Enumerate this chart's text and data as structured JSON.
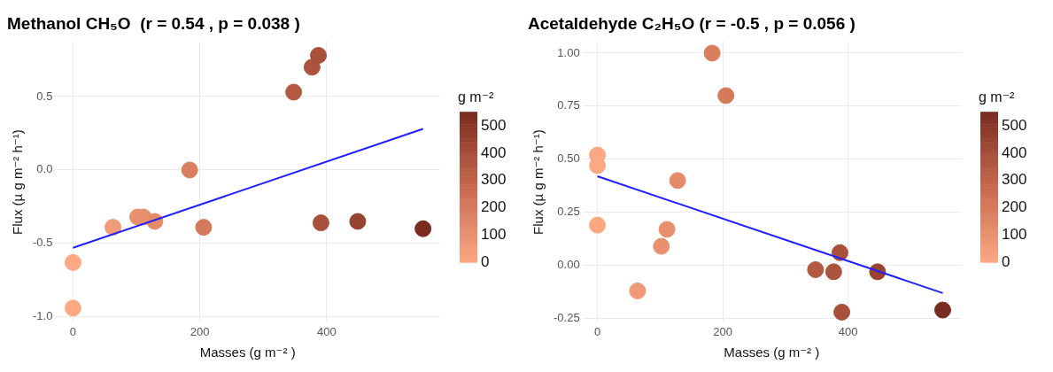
{
  "chart_data": [
    {
      "type": "scatter",
      "title": "Methanol CH₅O  (r = 0.54 , p = 0.038 )",
      "xlabel": "Masses (g m⁻² )",
      "ylabel": "Flux (µ g m⁻² h⁻¹)",
      "clabel": "g m⁻²",
      "clim": [
        0,
        552
      ],
      "cticks": [
        0,
        100,
        200,
        300,
        400,
        500
      ],
      "xlim": [
        -28,
        579
      ],
      "ylim": [
        -1.04,
        0.875
      ],
      "xticks": [
        0,
        200,
        400
      ],
      "yticks": [
        {
          "value": -1,
          "label": "-1.0"
        },
        -0.5,
        {
          "value": 0,
          "label": "0.0"
        },
        0.5
      ],
      "grid": true,
      "series": [
        {
          "type": "scatter",
          "marker": "circle",
          "x": [
            0,
            0,
            63,
            102,
            111,
            129,
            184,
            206,
            348,
            377,
            387,
            391,
            449,
            552
          ],
          "values": [
            -0.63,
            -0.94,
            -0.39,
            -0.32,
            -0.32,
            -0.35,
            0.0,
            -0.39,
            0.53,
            0.7,
            0.78,
            -0.36,
            -0.35,
            -0.4
          ],
          "cvalues": [
            0,
            0,
            63,
            102,
            111,
            129,
            184,
            206,
            348,
            377,
            387,
            391,
            449,
            552
          ],
          "colors": [
            "#fca882",
            "#fca882",
            "#f09a76",
            "#e99170",
            "#e78f6d",
            "#e48b6a",
            "#d97e5f",
            "#d5795b",
            "#b45942",
            "#ac533d",
            "#a9503c",
            "#a8503b",
            "#974331",
            "#7a2c20"
          ]
        },
        {
          "type": "line",
          "color": "#1f1fff",
          "x": [
            0,
            552
          ],
          "values": [
            -0.53,
            0.28
          ]
        }
      ]
    },
    {
      "type": "scatter",
      "title": "Acetaldehyde C₂H₅O (r = -0.5 , p = 0.056 )",
      "xlabel": "Masses (g m⁻² )",
      "ylabel": "Flux (µ g m⁻² h⁻¹)",
      "clabel": "g m⁻²",
      "clim": [
        0,
        552
      ],
      "cticks": [
        0,
        100,
        200,
        300,
        400,
        500
      ],
      "xlim": [
        -24,
        580
      ],
      "ylim": [
        -0.27,
        1.055
      ],
      "xticks": [
        0,
        200,
        400
      ],
      "yticks": [
        {
          "value": -0.25,
          "label": "-0.25"
        },
        {
          "value": 0,
          "label": "0.00"
        },
        {
          "value": 0.25,
          "label": "0.25"
        },
        {
          "value": 0.5,
          "label": "0.50"
        },
        {
          "value": 0.75,
          "label": "0.75"
        },
        {
          "value": 1,
          "label": "1.00"
        }
      ],
      "grid": true,
      "series": [
        {
          "type": "scatter",
          "marker": "circle",
          "x": [
            0,
            0,
            0,
            64,
            102,
            111,
            128,
            183,
            205,
            348,
            377,
            387,
            390,
            447,
            551
          ],
          "values": [
            0.52,
            0.47,
            0.19,
            -0.12,
            0.09,
            0.17,
            0.4,
            1.0,
            0.8,
            -0.02,
            -0.03,
            0.06,
            -0.22,
            -0.03,
            -0.21
          ],
          "cvalues": [
            0,
            0,
            0,
            64,
            102,
            111,
            128,
            183,
            205,
            348,
            377,
            387,
            390,
            447,
            551
          ],
          "colors": [
            "#fca882",
            "#fca882",
            "#fca882",
            "#f09976",
            "#e99170",
            "#e78f6d",
            "#e48b6a",
            "#da7e60",
            "#d5795b",
            "#b45942",
            "#ac533d",
            "#a9503c",
            "#a8503b",
            "#984332",
            "#7b2d20"
          ]
        },
        {
          "type": "line",
          "color": "#1f1fff",
          "x": [
            0,
            551
          ],
          "values": [
            0.42,
            -0.13
          ]
        }
      ]
    }
  ]
}
